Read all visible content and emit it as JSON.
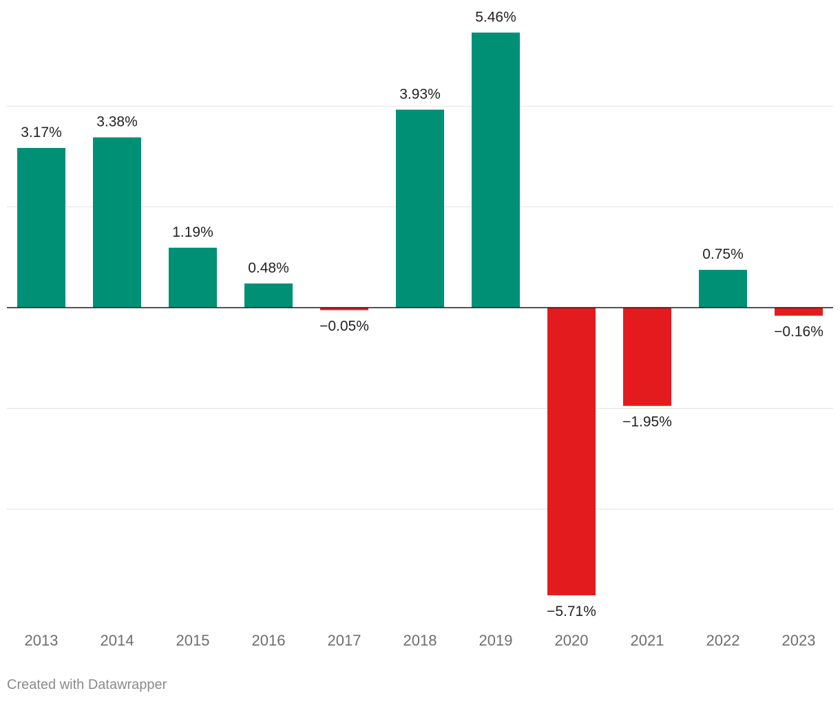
{
  "chart_data": {
    "type": "bar",
    "categories": [
      "2013",
      "2014",
      "2015",
      "2016",
      "2017",
      "2018",
      "2019",
      "2020",
      "2021",
      "2022",
      "2023"
    ],
    "values": [
      3.17,
      3.38,
      1.19,
      0.48,
      -0.05,
      3.93,
      5.46,
      -5.71,
      -1.95,
      0.75,
      -0.16
    ],
    "data_labels": [
      "3.17%",
      "3.38%",
      "1.19%",
      "0.48%",
      "−0.05%",
      "3.93%",
      "5.46%",
      "−5.71%",
      "−1.95%",
      "0.75%",
      "−0.16%"
    ],
    "ylim": [
      -6,
      6
    ],
    "gridlines": [
      4,
      2,
      -2,
      -4
    ],
    "grid": true,
    "legend": "none",
    "colors": {
      "positive": "#009076",
      "negative": "#e31b1e"
    }
  },
  "footer": {
    "credit": "Created with Datawrapper"
  }
}
